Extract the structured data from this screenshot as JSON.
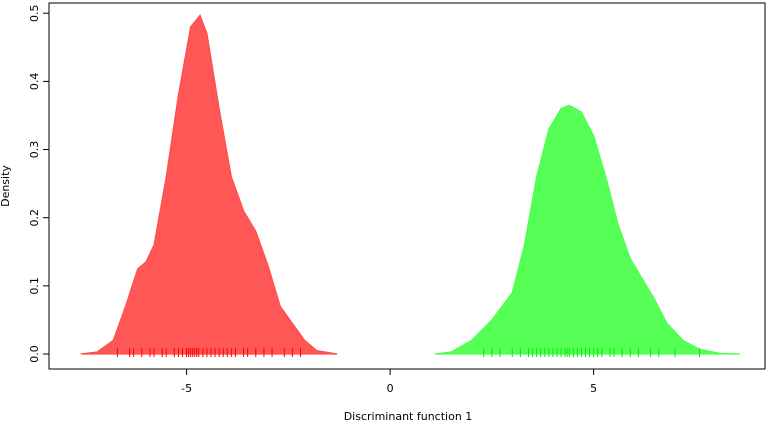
{
  "chart_data": {
    "type": "area",
    "x_label": "Discriminant function 1",
    "y_label": "Density",
    "xlim": [
      -8.38,
      9.21
    ],
    "ylim": [
      -0.022,
      0.515
    ],
    "xticks": [
      -5,
      0,
      5
    ],
    "yticks": [
      {
        "value": 0,
        "label": "0.0"
      },
      0.1,
      0.2,
      0.3,
      0.4,
      0.5
    ],
    "series": [
      {
        "color": "#ff4d4d",
        "rug_color": "#ff0000",
        "x": [
          -7.6,
          -7.2,
          -6.8,
          -6.5,
          -6.2,
          -6.0,
          -5.8,
          -5.5,
          -5.2,
          -4.9,
          -4.67,
          -4.5,
          -4.2,
          -3.9,
          -3.6,
          -3.3,
          -3.0,
          -2.7,
          -2.4,
          -2.1,
          -1.8,
          -1.3
        ],
        "values": [
          0,
          0.003,
          0.02,
          0.07,
          0.125,
          0.135,
          0.16,
          0.26,
          0.38,
          0.48,
          0.497,
          0.47,
          0.36,
          0.26,
          0.21,
          0.18,
          0.13,
          0.07,
          0.045,
          0.02,
          0.005,
          0
        ],
        "rug": [
          -6.7,
          -6.4,
          -6.3,
          -6.1,
          -5.9,
          -5.8,
          -5.6,
          -5.5,
          -5.3,
          -5.2,
          -5.1,
          -5.0,
          -4.95,
          -4.9,
          -4.85,
          -4.8,
          -4.75,
          -4.7,
          -4.6,
          -4.5,
          -4.4,
          -4.3,
          -4.2,
          -4.1,
          -4.0,
          -3.9,
          -3.8,
          -3.6,
          -3.5,
          -3.3,
          -3.1,
          -2.9,
          -2.6,
          -2.4,
          -2.2
        ]
      },
      {
        "color": "#4dff4d",
        "rug_color": "#00ee00",
        "x": [
          1.1,
          1.5,
          2.0,
          2.5,
          3.0,
          3.3,
          3.6,
          3.9,
          4.2,
          4.4,
          4.7,
          5.0,
          5.3,
          5.6,
          5.9,
          6.2,
          6.5,
          6.8,
          7.2,
          7.6,
          8.1,
          8.6
        ],
        "values": [
          0,
          0.003,
          0.02,
          0.05,
          0.09,
          0.16,
          0.26,
          0.33,
          0.36,
          0.365,
          0.355,
          0.32,
          0.26,
          0.19,
          0.14,
          0.11,
          0.08,
          0.045,
          0.02,
          0.007,
          0.001,
          0
        ],
        "rug": [
          2.3,
          2.5,
          2.7,
          3.0,
          3.2,
          3.4,
          3.5,
          3.6,
          3.7,
          3.8,
          3.9,
          4.0,
          4.1,
          4.2,
          4.3,
          4.35,
          4.4,
          4.5,
          4.6,
          4.7,
          4.8,
          4.9,
          5.0,
          5.1,
          5.2,
          5.4,
          5.5,
          5.7,
          5.9,
          6.1,
          6.4,
          6.6,
          7.0,
          7.6
        ]
      }
    ]
  }
}
